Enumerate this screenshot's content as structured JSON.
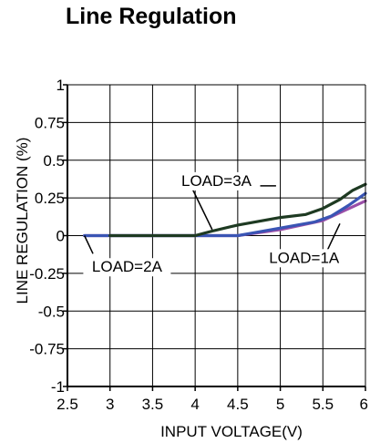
{
  "chart_data": {
    "type": "line",
    "title": "Line Regulation",
    "xlabel": "INPUT VOLTAGE(V)",
    "ylabel": "LINE REGULATION (%)",
    "xlim": [
      2.5,
      6
    ],
    "ylim": [
      -1,
      1
    ],
    "xticks": [
      2.5,
      3,
      3.5,
      4,
      4.5,
      5,
      5.5,
      6
    ],
    "xtick_labels": [
      "2.5",
      "3",
      "3.5",
      "4",
      "4.5",
      "5",
      "5.5",
      "6"
    ],
    "yticks": [
      1,
      0.75,
      0.5,
      0.25,
      0,
      -0.25,
      -0.5,
      -0.75,
      -1
    ],
    "ytick_labels": [
      "1",
      "0.75",
      "0.5",
      "0.25",
      "0",
      "-0.25",
      "-0.5",
      "-0.75",
      "-1"
    ],
    "grid": true,
    "series": [
      {
        "name": "LOAD=1A",
        "color": "#9a4fa8",
        "x": [
          2.7,
          3.0,
          4.0,
          4.5,
          5.0,
          5.5,
          6.0
        ],
        "y": [
          0.0,
          0.0,
          0.0,
          0.0,
          0.04,
          0.1,
          0.23
        ]
      },
      {
        "name": "LOAD=2A",
        "color": "#3a55b4",
        "x": [
          2.7,
          3.0,
          4.0,
          4.5,
          5.0,
          5.4,
          5.6,
          5.8,
          6.0
        ],
        "y": [
          0.0,
          0.0,
          0.0,
          0.0,
          0.05,
          0.09,
          0.13,
          0.2,
          0.28
        ]
      },
      {
        "name": "LOAD=3A",
        "color": "#1e3a22",
        "x": [
          3.0,
          4.0,
          4.2,
          4.5,
          5.0,
          5.3,
          5.5,
          5.7,
          5.85,
          6.0
        ],
        "y": [
          0.0,
          0.0,
          0.03,
          0.07,
          0.12,
          0.14,
          0.18,
          0.24,
          0.3,
          0.34
        ]
      }
    ],
    "annotations": [
      {
        "text": "LOAD=3A",
        "series": "LOAD=3A"
      },
      {
        "text": "LOAD=2A",
        "series": "LOAD=2A"
      },
      {
        "text": "LOAD=1A",
        "series": "LOAD=1A"
      }
    ]
  }
}
